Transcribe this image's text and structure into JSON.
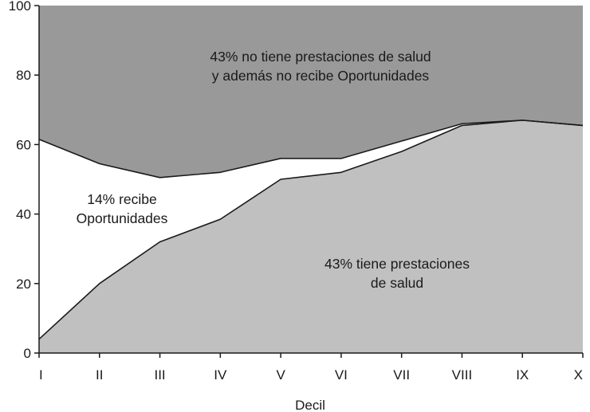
{
  "chart_data": {
    "type": "area",
    "x": [
      "I",
      "II",
      "III",
      "IV",
      "V",
      "VI",
      "VII",
      "VIII",
      "IX",
      "X"
    ],
    "xlabel": "Decil",
    "ylabel": "",
    "ylim": [
      0,
      100
    ],
    "yticks": [
      "0",
      "20",
      "40",
      "60",
      "80",
      "100"
    ],
    "grid": false,
    "legend": "none",
    "series": [
      {
        "values": [
          4,
          20,
          32,
          38.5,
          50,
          52,
          58,
          65.5,
          67,
          65.5
        ],
        "color": "#c0c0c0"
      },
      {
        "values": [
          61.5,
          54.5,
          50.5,
          52,
          56,
          56,
          61,
          66,
          67,
          65.5
        ],
        "color": "#ffffff"
      },
      {
        "values": [
          100,
          100,
          100,
          100,
          100,
          100,
          100,
          100,
          100,
          100
        ],
        "color": "#999999"
      }
    ],
    "annotations": [
      {
        "lines": [
          "43% no tiene prestaciones de salud",
          "y además no recibe Oportunidades"
        ]
      },
      {
        "lines": [
          "14% recibe",
          "Oportunidades"
        ]
      },
      {
        "lines": [
          "43% tiene prestaciones",
          "de salud"
        ]
      }
    ]
  }
}
